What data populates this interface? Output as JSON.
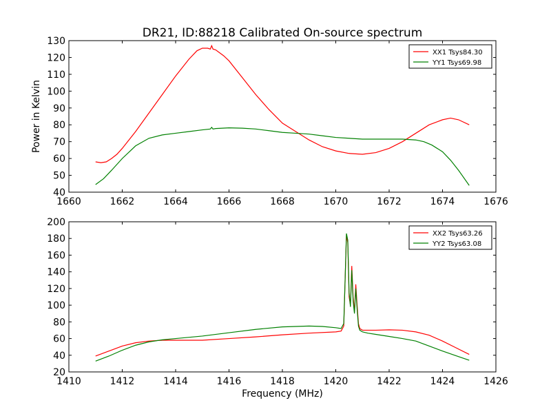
{
  "chart_data": [
    {
      "type": "line",
      "title": "DR21, ID:88218 Calibrated On-source spectrum",
      "xlabel": "",
      "ylabel": "Power in Kelvin",
      "xlim": [
        1660,
        1676
      ],
      "ylim": [
        40,
        130
      ],
      "xticks": [
        1660,
        1662,
        1664,
        1666,
        1668,
        1670,
        1672,
        1674,
        1676
      ],
      "yticks": [
        40,
        50,
        60,
        70,
        80,
        90,
        100,
        110,
        120,
        130
      ],
      "legend_position": "top-right",
      "series": [
        {
          "name": "XX1 Tsys84.30",
          "color": "#ff0000",
          "x": [
            1661.0,
            1661.2,
            1661.4,
            1661.6,
            1661.8,
            1662.0,
            1662.5,
            1663.0,
            1663.5,
            1664.0,
            1664.5,
            1664.8,
            1665.0,
            1665.2,
            1665.3,
            1665.35,
            1665.4,
            1665.5,
            1665.8,
            1666.0,
            1666.5,
            1667.0,
            1667.5,
            1668.0,
            1668.5,
            1669.0,
            1669.5,
            1670.0,
            1670.5,
            1671.0,
            1671.5,
            1672.0,
            1672.5,
            1673.0,
            1673.5,
            1674.0,
            1674.3,
            1674.6,
            1675.0
          ],
          "values": [
            58,
            57.5,
            58,
            60,
            62.5,
            66,
            76,
            87,
            98,
            109,
            119,
            124,
            125.5,
            125.5,
            125,
            127,
            125,
            124.5,
            121,
            118,
            108,
            98,
            89,
            81,
            76,
            71,
            67,
            64.5,
            63,
            62.5,
            63.5,
            66,
            70,
            75,
            80,
            83,
            84,
            83,
            80
          ]
        },
        {
          "name": "YY1 Tsys69.98",
          "color": "#008000",
          "x": [
            1661.0,
            1661.3,
            1661.6,
            1662.0,
            1662.5,
            1663.0,
            1663.5,
            1664.0,
            1664.5,
            1665.0,
            1665.3,
            1665.35,
            1665.4,
            1665.5,
            1666.0,
            1666.5,
            1667.0,
            1667.5,
            1668.0,
            1668.5,
            1669.0,
            1669.5,
            1670.0,
            1670.5,
            1671.0,
            1671.5,
            1672.0,
            1672.5,
            1673.0,
            1673.3,
            1673.6,
            1674.0,
            1674.3,
            1674.6,
            1675.0
          ],
          "values": [
            44.5,
            48,
            53,
            60,
            67.5,
            72,
            74,
            75,
            76,
            77,
            77.5,
            78.5,
            77.5,
            77.8,
            78.2,
            78,
            77.5,
            76.5,
            75.5,
            75,
            74.5,
            73.5,
            72.5,
            72,
            71.5,
            71.5,
            71.5,
            71.5,
            71,
            70,
            68,
            64,
            59,
            53,
            44
          ]
        }
      ]
    },
    {
      "type": "line",
      "title": "",
      "xlabel": "Frequency (MHz)",
      "ylabel": "",
      "xlim": [
        1410,
        1426
      ],
      "ylim": [
        20,
        200
      ],
      "xticks": [
        1410,
        1412,
        1414,
        1416,
        1418,
        1420,
        1422,
        1424,
        1426
      ],
      "yticks": [
        20,
        40,
        60,
        80,
        100,
        120,
        140,
        160,
        180,
        200
      ],
      "legend_position": "top-right",
      "series": [
        {
          "name": "XX2 Tsys63.26",
          "color": "#ff0000",
          "x": [
            1411.0,
            1411.5,
            1412.0,
            1412.5,
            1413.0,
            1413.5,
            1414.0,
            1415.0,
            1416.0,
            1417.0,
            1418.0,
            1419.0,
            1420.0,
            1420.2,
            1420.3,
            1420.35,
            1420.4,
            1420.45,
            1420.5,
            1420.55,
            1420.6,
            1420.65,
            1420.7,
            1420.75,
            1420.8,
            1420.85,
            1420.9,
            1421.0,
            1421.1,
            1421.5,
            1422.0,
            1422.5,
            1423.0,
            1423.5,
            1424.0,
            1424.5,
            1425.0
          ],
          "values": [
            39,
            45,
            51,
            55,
            57,
            58,
            58,
            58,
            60,
            62,
            64.5,
            66.5,
            68,
            69,
            75,
            130,
            184,
            175,
            110,
            100,
            147,
            110,
            92,
            125,
            100,
            78,
            72,
            70,
            70,
            70,
            70.5,
            70,
            68,
            64,
            57,
            49,
            41
          ]
        },
        {
          "name": "YY2 Tsys63.08",
          "color": "#008000",
          "x": [
            1411.0,
            1411.5,
            1412.0,
            1412.5,
            1413.0,
            1413.5,
            1414.0,
            1415.0,
            1416.0,
            1417.0,
            1418.0,
            1419.0,
            1419.5,
            1420.0,
            1420.2,
            1420.3,
            1420.35,
            1420.4,
            1420.45,
            1420.5,
            1420.55,
            1420.6,
            1420.65,
            1420.7,
            1420.75,
            1420.8,
            1420.85,
            1420.9,
            1421.0,
            1421.2,
            1421.5,
            1422.0,
            1422.5,
            1423.0,
            1423.5,
            1424.0,
            1424.5,
            1425.0
          ],
          "values": [
            33,
            39,
            46,
            52,
            56,
            58.5,
            60,
            63,
            67,
            71,
            74,
            75,
            74.5,
            73,
            72,
            78,
            130,
            186,
            178,
            115,
            98,
            142,
            105,
            90,
            120,
            95,
            75,
            70,
            68,
            66.5,
            65,
            62.5,
            60,
            57,
            51,
            45,
            39.5,
            34
          ]
        }
      ]
    }
  ]
}
